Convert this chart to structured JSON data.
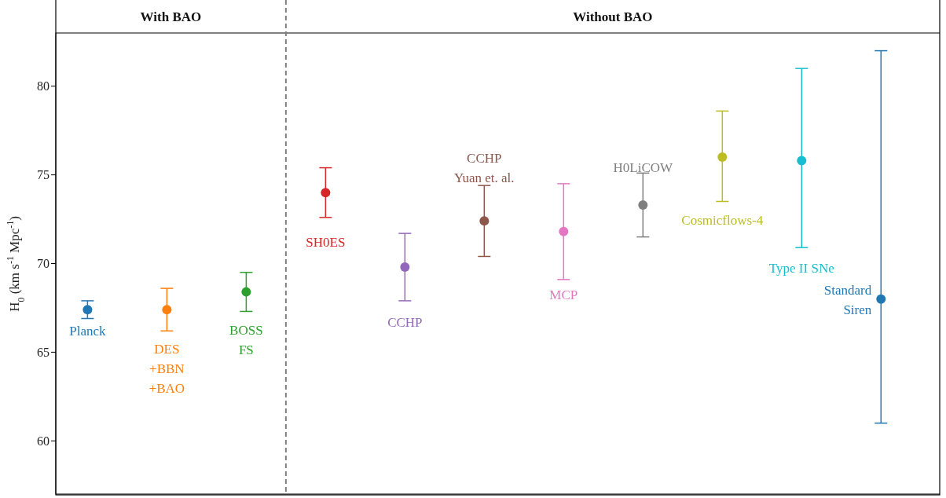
{
  "chart_data": {
    "type": "scatter",
    "ylabel": "H$_{0}$ (km s$^{-1}$ Mpc$^{-1}$)",
    "categories": [
      null,
      null,
      null,
      null,
      null,
      null,
      null,
      null,
      null,
      null,
      null
    ],
    "series": [
      {
        "name": "Planck",
        "color": "#1f77b4",
        "values": [
          67.4,
          null,
          null,
          null,
          null,
          null,
          null,
          null,
          null,
          null,
          null
        ],
        "errors": [
          0.5,
          null,
          null,
          null,
          null,
          null,
          null,
          null,
          null,
          null,
          null
        ]
      },
      {
        "name": "DES\n+BBN\n+BAO",
        "color": "#ff7f0e",
        "values": [
          null,
          67.4,
          null,
          null,
          null,
          null,
          null,
          null,
          null,
          null,
          null
        ],
        "errors": [
          null,
          1.2,
          null,
          null,
          null,
          null,
          null,
          null,
          null,
          null,
          null
        ]
      },
      {
        "name": "BOSS\nFS",
        "color": "#2ca02c",
        "values": [
          null,
          null,
          68.4,
          null,
          null,
          null,
          null,
          null,
          null,
          null,
          null
        ],
        "errors": [
          null,
          null,
          1.1,
          null,
          null,
          null,
          null,
          null,
          null,
          null,
          null
        ]
      },
      {
        "name": "SH0ES",
        "color": "#d62728",
        "values": [
          null,
          null,
          null,
          74.0,
          null,
          null,
          null,
          null,
          null,
          null,
          null
        ],
        "errors": [
          null,
          null,
          null,
          1.4,
          null,
          null,
          null,
          null,
          null,
          null,
          null
        ]
      },
      {
        "name": "CCHP",
        "color": "#9467bd",
        "values": [
          null,
          null,
          null,
          null,
          69.8,
          null,
          null,
          null,
          null,
          null,
          null
        ],
        "errors": [
          null,
          null,
          null,
          null,
          1.9,
          null,
          null,
          null,
          null,
          null,
          null
        ]
      },
      {
        "name": "CCHP\nYuan et. al.",
        "color": "#8c564b",
        "values": [
          null,
          null,
          null,
          null,
          null,
          72.4,
          null,
          null,
          null,
          null,
          null
        ],
        "errors": [
          null,
          null,
          null,
          null,
          null,
          2.0,
          null,
          null,
          null,
          null,
          null
        ]
      },
      {
        "name": "MCP",
        "color": "#e377c2",
        "values": [
          null,
          null,
          null,
          null,
          null,
          null,
          71.8,
          null,
          null,
          null,
          null
        ],
        "errors": [
          null,
          null,
          null,
          null,
          null,
          null,
          [
            69.1,
            74.5
          ],
          null,
          null,
          null,
          null
        ]
      },
      {
        "name": "H0LiCOW",
        "color": "#7f7f7f",
        "values": [
          null,
          null,
          null,
          null,
          null,
          null,
          null,
          73.3,
          null,
          null,
          null
        ],
        "errors": [
          null,
          null,
          null,
          null,
          null,
          null,
          null,
          1.8,
          null,
          null,
          null
        ]
      },
      {
        "name": "Cosmicflows-4",
        "color": "#bcbd22",
        "values": [
          null,
          null,
          null,
          null,
          null,
          null,
          null,
          null,
          76.0,
          null,
          null
        ],
        "errors": [
          null,
          null,
          null,
          null,
          null,
          null,
          null,
          null,
          [
            73.5,
            78.6
          ],
          null,
          null
        ]
      },
      {
        "name": "Type II SNe",
        "color": "#17becf",
        "values": [
          null,
          null,
          null,
          null,
          null,
          null,
          null,
          null,
          null,
          75.8,
          null
        ],
        "errors": [
          null,
          null,
          null,
          null,
          null,
          null,
          null,
          null,
          null,
          [
            70.9,
            81.0
          ],
          null
        ]
      },
      {
        "name": "Standard\nSiren",
        "color": "#1f77b4",
        "values": [
          null,
          null,
          null,
          null,
          null,
          null,
          null,
          null,
          null,
          null,
          68.0
        ],
        "errors": [
          null,
          null,
          null,
          null,
          null,
          null,
          null,
          null,
          null,
          null,
          [
            61.0,
            82.0
          ]
        ]
      }
    ],
    "marker": "circle",
    "tick_labels": "y",
    "ylim": [
      57,
      83
    ],
    "yticks": [
      60,
      65,
      70,
      75,
      80
    ],
    "annotations": [
      "With BAO",
      "Without BAO"
    ]
  }
}
